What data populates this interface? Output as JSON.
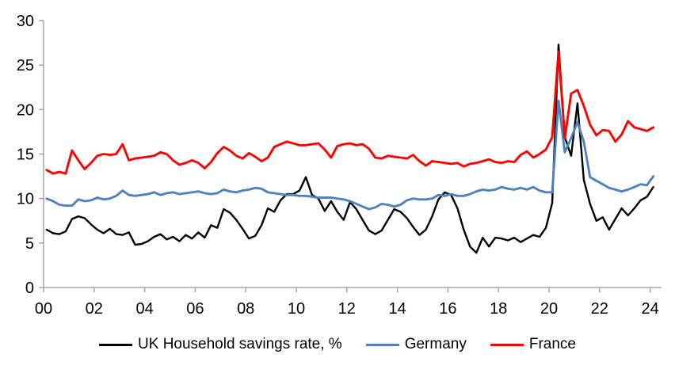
{
  "page": {
    "background": "#ffffff"
  },
  "chart_data": {
    "type": "line",
    "title": "",
    "legend_position": "bottom",
    "grid": false,
    "axis_color": "#A6A6A6",
    "text_color": "#000000",
    "x_axis": {
      "start_year": 2000,
      "frequency": "quarterly",
      "tick_labels": [
        "00",
        "02",
        "04",
        "06",
        "08",
        "10",
        "12",
        "14",
        "16",
        "18",
        "20",
        "22",
        "24"
      ],
      "tick_step_years": 2
    },
    "y_axis": {
      "min": 0,
      "max": 30,
      "ticks": [
        0,
        5,
        10,
        15,
        20,
        25,
        30
      ]
    },
    "series": [
      {
        "name": "UK Household savings rate, %",
        "color": "#000000",
        "stroke_width": 2.4,
        "values": [
          6.5,
          6.1,
          6.0,
          6.3,
          7.7,
          8.0,
          7.8,
          7.1,
          6.5,
          6.1,
          6.6,
          6.0,
          5.9,
          6.2,
          4.8,
          4.9,
          5.2,
          5.7,
          6.0,
          5.4,
          5.7,
          5.2,
          5.9,
          5.5,
          6.2,
          5.6,
          7.0,
          6.7,
          8.8,
          8.4,
          7.6,
          6.6,
          5.5,
          5.8,
          7.0,
          8.9,
          8.5,
          9.8,
          10.5,
          10.5,
          10.9,
          12.4,
          10.4,
          10.0,
          8.6,
          9.7,
          8.5,
          7.6,
          9.6,
          8.8,
          7.6,
          6.4,
          6.0,
          6.4,
          7.6,
          8.8,
          8.5,
          7.8,
          6.8,
          5.9,
          6.5,
          8.0,
          9.9,
          10.7,
          10.4,
          8.9,
          6.5,
          4.6,
          3.9,
          5.6,
          4.6,
          5.6,
          5.5,
          5.3,
          5.6,
          5.1,
          5.5,
          5.9,
          5.7,
          6.7,
          9.5,
          27.3,
          16.9,
          14.8,
          20.7,
          12.1,
          9.4,
          7.5,
          7.9,
          6.5,
          7.7,
          8.9,
          8.1,
          8.9,
          9.8,
          10.2,
          11.3
        ]
      },
      {
        "name": "Germany",
        "color": "#4F81BD",
        "stroke_width": 2.9,
        "values": [
          10.0,
          9.7,
          9.3,
          9.2,
          9.2,
          9.9,
          9.7,
          9.8,
          10.1,
          9.9,
          10.0,
          10.3,
          10.9,
          10.4,
          10.3,
          10.4,
          10.5,
          10.7,
          10.4,
          10.6,
          10.7,
          10.5,
          10.6,
          10.7,
          10.8,
          10.6,
          10.5,
          10.6,
          11.0,
          10.8,
          10.7,
          10.9,
          11.0,
          11.2,
          11.1,
          10.7,
          10.6,
          10.5,
          10.4,
          10.4,
          10.3,
          10.3,
          10.2,
          10.1,
          10.1,
          10.1,
          10.0,
          9.9,
          9.7,
          9.4,
          9.1,
          8.8,
          9.0,
          9.4,
          9.3,
          9.1,
          9.3,
          9.8,
          10.0,
          9.9,
          9.9,
          10.0,
          10.4,
          10.3,
          10.5,
          10.3,
          10.3,
          10.5,
          10.8,
          11.0,
          10.9,
          11.0,
          11.3,
          11.1,
          11.0,
          11.2,
          11.0,
          11.3,
          10.9,
          10.7,
          10.7,
          21.0,
          15.2,
          16.8,
          18.6,
          16.4,
          12.4,
          12.0,
          11.6,
          11.2,
          11.0,
          10.8,
          11.0,
          11.3,
          11.6,
          11.5,
          12.5
        ]
      },
      {
        "name": "France",
        "color": "#FF0000",
        "stroke_width": 2.9,
        "values": [
          13.2,
          12.8,
          13.0,
          12.8,
          15.4,
          14.3,
          13.3,
          14.0,
          14.8,
          15.0,
          14.9,
          15.0,
          16.1,
          14.3,
          14.5,
          14.6,
          14.7,
          14.8,
          15.2,
          15.0,
          14.3,
          13.8,
          14.0,
          14.3,
          14.0,
          13.4,
          14.1,
          15.1,
          15.8,
          15.4,
          14.8,
          14.5,
          15.1,
          14.7,
          14.2,
          14.6,
          15.8,
          16.1,
          16.4,
          16.2,
          16.0,
          16.0,
          16.1,
          16.2,
          15.5,
          14.6,
          15.9,
          16.1,
          16.2,
          16.0,
          16.1,
          15.6,
          14.6,
          14.5,
          14.8,
          14.7,
          14.6,
          14.5,
          14.9,
          14.2,
          13.7,
          14.2,
          14.1,
          14.0,
          13.9,
          14.0,
          13.6,
          13.9,
          14.0,
          14.2,
          14.4,
          14.1,
          14.0,
          14.2,
          14.1,
          14.9,
          15.3,
          14.6,
          15.0,
          15.5,
          16.9,
          26.5,
          16.8,
          21.8,
          22.2,
          20.4,
          18.3,
          17.1,
          17.7,
          17.6,
          16.4,
          17.2,
          18.7,
          18.0,
          17.8,
          17.6,
          18.0
        ]
      }
    ]
  }
}
